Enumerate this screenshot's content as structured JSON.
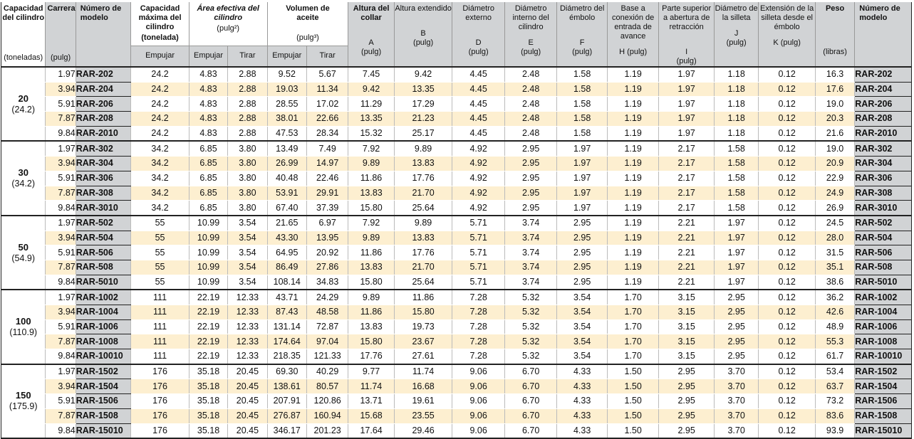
{
  "headers": {
    "capacity": "Capacidad del cilindro",
    "capacity_unit": "(toneladas)",
    "stroke": "Carrera*",
    "stroke_unit": "(pulg)",
    "model": "Número de modelo",
    "max_capacity": "Capacidad máxima del cilindro",
    "max_capacity_unit": "(tonelada)",
    "eff_area": "Área efectiva del cilindro",
    "eff_area_unit": "(pulg²)",
    "oil_volume": "Volumen de aceite",
    "oil_volume_unit": "(pulg³)",
    "push": "Empujar",
    "pull": "Tirar",
    "collapsed": "Altura del collar",
    "extended": "Altura extendido",
    "outside_dia": "Diámetro externo",
    "inside_dia": "Diámetro interno del cilindro",
    "plunger_dia": "Diámetro del émbolo",
    "advance_port": "Base a conexión de entrada de avance",
    "retract_port": "Parte superior a abertura de retracción",
    "saddle_dia": "Diámetro de la silleta",
    "saddle_ext": "Extensión de la silleta desde el émbolo",
    "weight": "Peso",
    "model2": "Número de modelo",
    "letter_a": "A",
    "letter_b": "B",
    "letter_d": "D",
    "letter_e": "E",
    "letter_f": "F",
    "letter_h": "H (pulg)",
    "letter_i": "I",
    "letter_j": "J",
    "letter_k": "K (pulg)",
    "unit_pulg": "(pulg)",
    "unit_lbs": "(libras)"
  },
  "groups": [
    {
      "ton": "20",
      "ton_sub": "(24.2)",
      "rows": [
        [
          "1.97",
          "RAR-202",
          "24.2",
          "4.83",
          "2.88",
          "9.52",
          "5.67",
          "7.45",
          "9.42",
          "4.45",
          "2.48",
          "1.58",
          "1.19",
          "1.97",
          "1.18",
          "0.12",
          "16.3",
          "RAR-202"
        ],
        [
          "3.94",
          "RAR-204",
          "24.2",
          "4.83",
          "2.88",
          "19.03",
          "11.34",
          "9.42",
          "13.35",
          "4.45",
          "2.48",
          "1.58",
          "1.19",
          "1.97",
          "1.18",
          "0.12",
          "17.6",
          "RAR-204"
        ],
        [
          "5.91",
          "RAR-206",
          "24.2",
          "4.83",
          "2.88",
          "28.55",
          "17.02",
          "11.29",
          "17.29",
          "4.45",
          "2.48",
          "1.58",
          "1.19",
          "1.97",
          "1.18",
          "0.12",
          "19.0",
          "RAR-206"
        ],
        [
          "7.87",
          "RAR-208",
          "24.2",
          "4.83",
          "2.88",
          "38.01",
          "22.66",
          "13.35",
          "21.23",
          "4.45",
          "2.48",
          "1.58",
          "1.19",
          "1.97",
          "1.18",
          "0.12",
          "20.3",
          "RAR-208"
        ],
        [
          "9.84",
          "RAR-2010",
          "24.2",
          "4.83",
          "2.88",
          "47.53",
          "28.34",
          "15.32",
          "25.17",
          "4.45",
          "2.48",
          "1.58",
          "1.19",
          "1.97",
          "1.18",
          "0.12",
          "21.6",
          "RAR-2010"
        ]
      ]
    },
    {
      "ton": "30",
      "ton_sub": "(34.2)",
      "rows": [
        [
          "1.97",
          "RAR-302",
          "34.2",
          "6.85",
          "3.80",
          "13.49",
          "7.49",
          "7.92",
          "9.89",
          "4.92",
          "2.95",
          "1.97",
          "1.19",
          "2.17",
          "1.58",
          "0.12",
          "19.0",
          "RAR-302"
        ],
        [
          "3.94",
          "RAR-304",
          "34.2",
          "6.85",
          "3.80",
          "26.99",
          "14.97",
          "9.89",
          "13.83",
          "4.92",
          "2.95",
          "1.97",
          "1.19",
          "2.17",
          "1.58",
          "0.12",
          "20.9",
          "RAR-304"
        ],
        [
          "5.91",
          "RAR-306",
          "34.2",
          "6.85",
          "3.80",
          "40.48",
          "22.46",
          "11.86",
          "17.76",
          "4.92",
          "2.95",
          "1.97",
          "1.19",
          "2.17",
          "1.58",
          "0.12",
          "22.9",
          "RAR-306"
        ],
        [
          "7.87",
          "RAR-308",
          "34.2",
          "6.85",
          "3.80",
          "53.91",
          "29.91",
          "13.83",
          "21.70",
          "4.92",
          "2.95",
          "1.97",
          "1.19",
          "2.17",
          "1.58",
          "0.12",
          "24.9",
          "RAR-308"
        ],
        [
          "9.84",
          "RAR-3010",
          "34.2",
          "6.85",
          "3.80",
          "67.40",
          "37.39",
          "15.80",
          "25.64",
          "4.92",
          "2.95",
          "1.97",
          "1.19",
          "2.17",
          "1.58",
          "0.12",
          "26.9",
          "RAR-3010"
        ]
      ]
    },
    {
      "ton": "50",
      "ton_sub": "(54.9)",
      "rows": [
        [
          "1.97",
          "RAR-502",
          "55",
          "10.99",
          "3.54",
          "21.65",
          "6.97",
          "7.92",
          "9.89",
          "5.71",
          "3.74",
          "2.95",
          "1.19",
          "2.21",
          "1.97",
          "0.12",
          "24.5",
          "RAR-502"
        ],
        [
          "3.94",
          "RAR-504",
          "55",
          "10.99",
          "3.54",
          "43.30",
          "13.95",
          "9.89",
          "13.83",
          "5.71",
          "3.74",
          "2.95",
          "1.19",
          "2.21",
          "1.97",
          "0.12",
          "28.0",
          "RAR-504"
        ],
        [
          "5.91",
          "RAR-506",
          "55",
          "10.99",
          "3.54",
          "64.95",
          "20.92",
          "11.86",
          "17.76",
          "5.71",
          "3.74",
          "2.95",
          "1.19",
          "2.21",
          "1.97",
          "0.12",
          "31.5",
          "RAR-506"
        ],
        [
          "7.87",
          "RAR-508",
          "55",
          "10.99",
          "3.54",
          "86.49",
          "27.86",
          "13.83",
          "21.70",
          "5.71",
          "3.74",
          "2.95",
          "1.19",
          "2.21",
          "1.97",
          "0.12",
          "35.1",
          "RAR-508"
        ],
        [
          "9.84",
          "RAR-5010",
          "55",
          "10.99",
          "3.54",
          "108.14",
          "34.83",
          "15.80",
          "25.64",
          "5.71",
          "3.74",
          "2.95",
          "1.19",
          "2.21",
          "1.97",
          "0.12",
          "38.6",
          "RAR-5010"
        ]
      ]
    },
    {
      "ton": "100",
      "ton_sub": "(110.9)",
      "rows": [
        [
          "1.97",
          "RAR-1002",
          "111",
          "22.19",
          "12.33",
          "43.71",
          "24.29",
          "9.89",
          "11.86",
          "7.28",
          "5.32",
          "3.54",
          "1.70",
          "3.15",
          "2.95",
          "0.12",
          "36.2",
          "RAR-1002"
        ],
        [
          "3.94",
          "RAR-1004",
          "111",
          "22.19",
          "12.33",
          "87.43",
          "48.58",
          "11.86",
          "15.80",
          "7.28",
          "5.32",
          "3.54",
          "1.70",
          "3.15",
          "2.95",
          "0.12",
          "42.6",
          "RAR-1004"
        ],
        [
          "5.91",
          "RAR-1006",
          "111",
          "22.19",
          "12.33",
          "131.14",
          "72.87",
          "13.83",
          "19.73",
          "7.28",
          "5.32",
          "3.54",
          "1.70",
          "3.15",
          "2.95",
          "0.12",
          "48.9",
          "RAR-1006"
        ],
        [
          "7.87",
          "RAR-1008",
          "111",
          "22.19",
          "12.33",
          "174.64",
          "97.04",
          "15.80",
          "23.67",
          "7.28",
          "5.32",
          "3.54",
          "1.70",
          "3.15",
          "2.95",
          "0.12",
          "55.3",
          "RAR-1008"
        ],
        [
          "9.84",
          "RAR-10010",
          "111",
          "22.19",
          "12.33",
          "218.35",
          "121.33",
          "17.76",
          "27.61",
          "7.28",
          "5.32",
          "3.54",
          "1.70",
          "3.15",
          "2.95",
          "0.12",
          "61.7",
          "RAR-10010"
        ]
      ]
    },
    {
      "ton": "150",
      "ton_sub": "(175.9)",
      "rows": [
        [
          "1.97",
          "RAR-1502",
          "176",
          "35.18",
          "20.45",
          "69.30",
          "40.29",
          "9.77",
          "11.74",
          "9.06",
          "6.70",
          "4.33",
          "1.50",
          "2.95",
          "3.70",
          "0.12",
          "53.4",
          "RAR-1502"
        ],
        [
          "3.94",
          "RAR-1504",
          "176",
          "35.18",
          "20.45",
          "138.61",
          "80.57",
          "11.74",
          "16.68",
          "9.06",
          "6.70",
          "4.33",
          "1.50",
          "2.95",
          "3.70",
          "0.12",
          "63.7",
          "RAR-1504"
        ],
        [
          "5.91",
          "RAR-1506",
          "176",
          "35.18",
          "20.45",
          "207.91",
          "120.86",
          "13.71",
          "19.61",
          "9.06",
          "6.70",
          "4.33",
          "1.50",
          "2.95",
          "3.70",
          "0.12",
          "73.2",
          "RAR-1506"
        ],
        [
          "7.87",
          "RAR-1508",
          "176",
          "35.18",
          "20.45",
          "276.87",
          "160.94",
          "15.68",
          "23.55",
          "9.06",
          "6.70",
          "4.33",
          "1.50",
          "2.95",
          "3.70",
          "0.12",
          "83.6",
          "RAR-1508"
        ],
        [
          "9.84",
          "RAR-15010",
          "176",
          "35.18",
          "20.45",
          "346.17",
          "201.23",
          "17.64",
          "29.46",
          "9.06",
          "6.70",
          "4.33",
          "1.50",
          "2.95",
          "3.70",
          "0.12",
          "93.9",
          "RAR-15010"
        ]
      ]
    }
  ]
}
